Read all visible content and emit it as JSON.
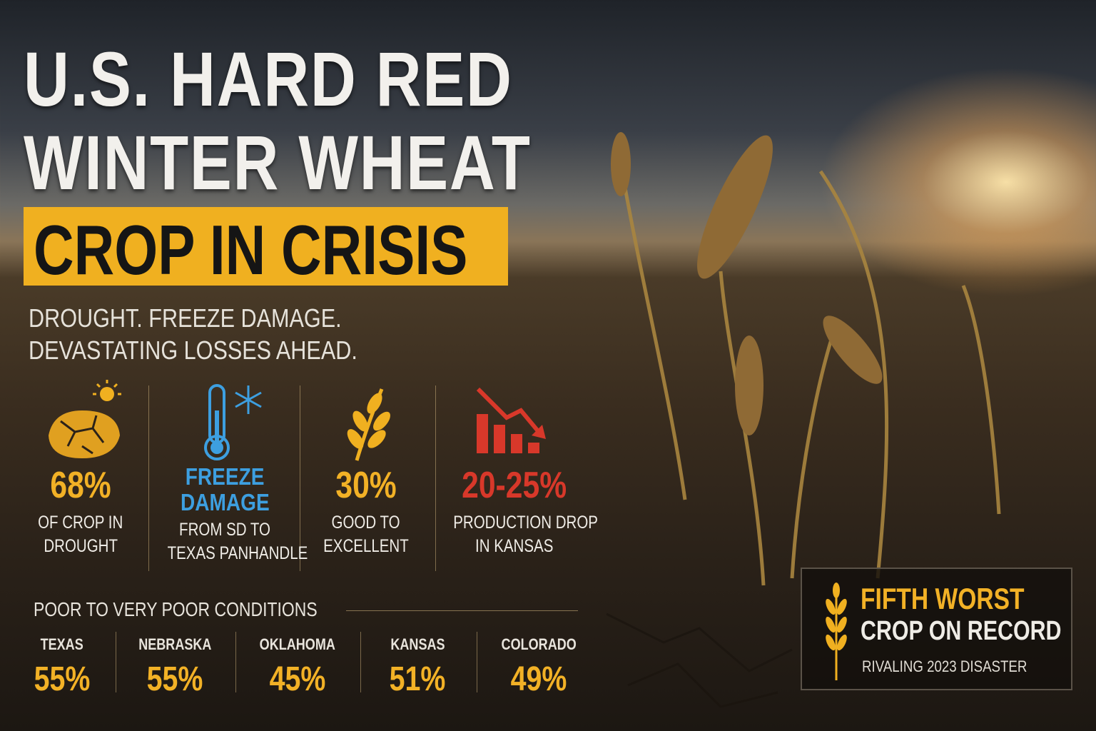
{
  "header": {
    "title_lines": [
      "U.S. HARD RED",
      "WINTER WHEAT"
    ],
    "banner": "CROP IN CRISIS",
    "subtitle_lines": [
      "DROUGHT. FREEZE DAMAGE.",
      "DEVASTATING LOSSES AHEAD."
    ]
  },
  "stats": [
    {
      "value": "68%",
      "label_lines": [
        "OF CROP IN",
        "DROUGHT"
      ]
    },
    {
      "value_lines": [
        "FREEZE",
        "DAMAGE"
      ],
      "label_lines": [
        "FROM SD TO",
        "TEXAS PANHANDLE"
      ]
    },
    {
      "value": "30%",
      "label_lines": [
        "GOOD TO",
        "EXCELLENT"
      ]
    },
    {
      "value": "20-25%",
      "label_lines": [
        "PRODUCTION DROP",
        "IN KANSAS"
      ]
    }
  ],
  "conditions": {
    "heading": "POOR TO VERY POOR CONDITIONS",
    "states": [
      {
        "name": "TEXAS",
        "value": "55%"
      },
      {
        "name": "NEBRASKA",
        "value": "55%"
      },
      {
        "name": "OKLAHOMA",
        "value": "45%"
      },
      {
        "name": "KANSAS",
        "value": "51%"
      },
      {
        "name": "COLORADO",
        "value": "49%"
      }
    ]
  },
  "callout": {
    "lines": [
      "FIFTH WORST",
      "CROP ON RECORD"
    ],
    "note": "RIVALING 2023 DISASTER"
  }
}
